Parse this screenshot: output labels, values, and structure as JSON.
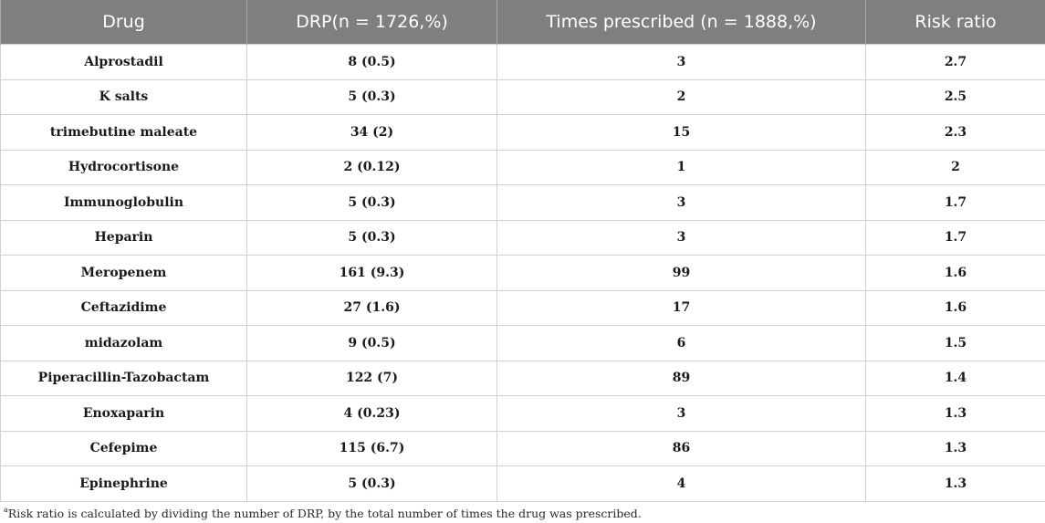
{
  "table": {
    "headers": [
      "Drug",
      "DRP(n = 1726,%)",
      "Times prescribed (n = 1888,%)",
      "Risk ratio"
    ],
    "rows": [
      [
        "Alprostadil",
        "8 (0.5)",
        "3",
        "2.7"
      ],
      [
        "K salts",
        "5 (0.3)",
        "2",
        "2.5"
      ],
      [
        "trimebutine maleate",
        "34 (2)",
        "15",
        "2.3"
      ],
      [
        "Hydrocortisone",
        "2 (0.12)",
        "1",
        "2"
      ],
      [
        "Immunoglobulin",
        "5 (0.3)",
        "3",
        "1.7"
      ],
      [
        "Heparin",
        "5 (0.3)",
        "3",
        "1.7"
      ],
      [
        "Meropenem",
        "161 (9.3)",
        "99",
        "1.6"
      ],
      [
        "Ceftazidime",
        "27 (1.6)",
        "17",
        "1.6"
      ],
      [
        "midazolam",
        "9 (0.5)",
        "6",
        "1.5"
      ],
      [
        "Piperacillin-Tazobactam",
        "122 (7)",
        "89",
        "1.4"
      ],
      [
        "Enoxaparin",
        "4 (0.23)",
        "3",
        "1.3"
      ],
      [
        "Cefepime",
        "115 (6.7)",
        "86",
        "1.3"
      ],
      [
        "Epinephrine",
        "5 (0.3)",
        "4",
        "1.3"
      ]
    ]
  },
  "footnote": {
    "marker": "a",
    "text": "Risk ratio is calculated by dividing the number of DRP, by the total number of times the drug was prescribed."
  }
}
